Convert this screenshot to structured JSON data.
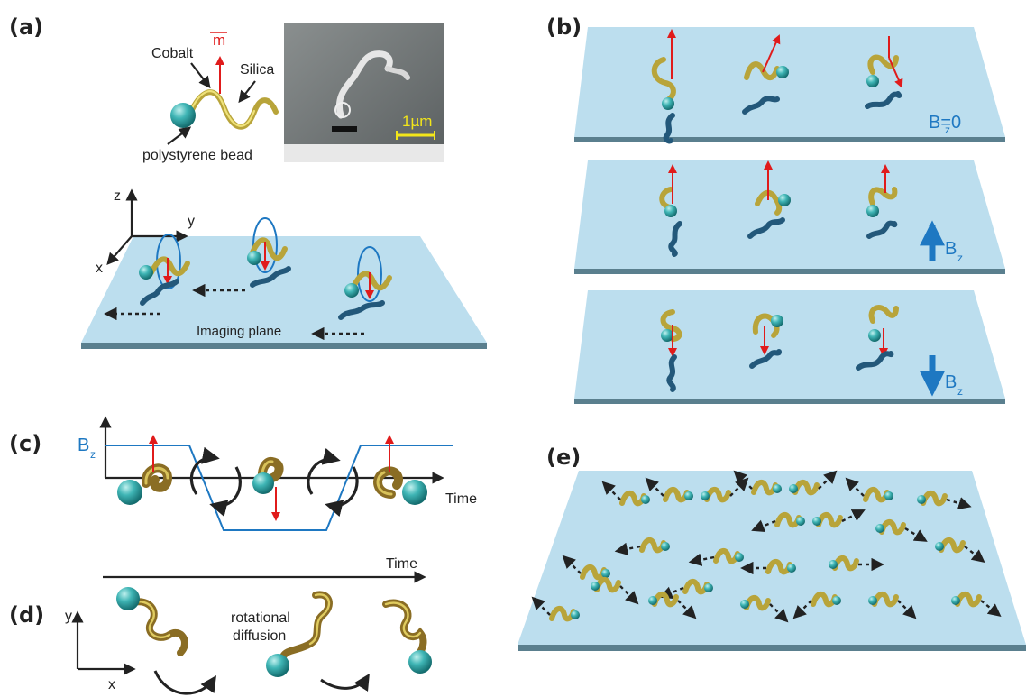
{
  "panels": {
    "a": "(a)",
    "b": "(b)",
    "c": "(c)",
    "d": "(d)",
    "e": "(e)"
  },
  "panel_a": {
    "cobalt": "Cobalt",
    "silica": "Silica",
    "moment": "m",
    "bead": "polystyrene bead",
    "scale_bar": "1µm",
    "axis_z": "z",
    "axis_y": "y",
    "axis_x": "x",
    "imaging_plane": "Imaging plane"
  },
  "panel_b": {
    "field_zero": "B=0",
    "field_zero_sub": "z",
    "field_up": "B",
    "field_up_sub": "z",
    "field_down": "B",
    "field_down_sub": "z"
  },
  "panel_c": {
    "bz": "B",
    "bz_sub": "z",
    "time": "Time"
  },
  "panel_d": {
    "time": "Time",
    "rotational": "rotational",
    "diffusion": "diffusion",
    "axis_y": "y",
    "axis_x": "x"
  },
  "colors": {
    "plane": "#bcdeee",
    "plane_edge": "#5a7f8e",
    "bead": "#3fb5b5",
    "helix": "#b8a43a",
    "moment_arrow": "#e01b1b",
    "field_blue": "#1e78c2",
    "shadow": "#23587a"
  }
}
